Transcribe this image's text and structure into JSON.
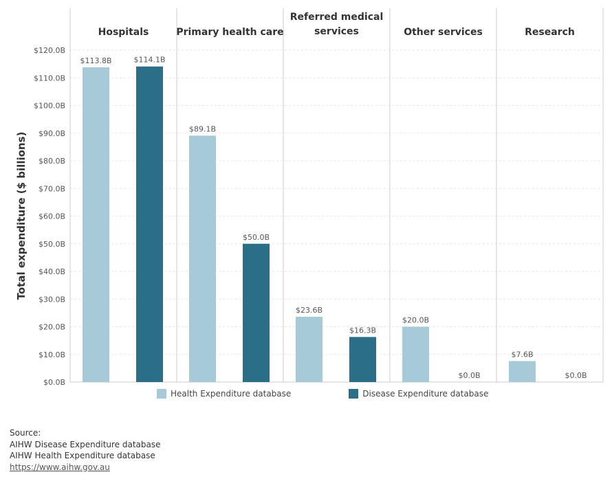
{
  "chart_data": {
    "type": "bar",
    "ylabel": "Total expenditure ($ billions)",
    "ylim": [
      0,
      120
    ],
    "yticks": [
      0,
      10,
      20,
      30,
      40,
      50,
      60,
      70,
      80,
      90,
      100,
      110,
      120
    ],
    "y_tick_labels": [
      "$0.0B",
      "$10.0B",
      "$20.0B",
      "$30.0B",
      "$40.0B",
      "$50.0B",
      "$60.0B",
      "$70.0B",
      "$80.0B",
      "$90.0B",
      "$100.0B",
      "$110.0B",
      "$120.0B"
    ],
    "categories": [
      "Hospitals",
      "Primary health care",
      "Referred medical services",
      "Other services",
      "Research"
    ],
    "category_labels": [
      [
        "Hospitals"
      ],
      [
        "Primary health care"
      ],
      [
        "Referred medical",
        "services"
      ],
      [
        "Other services"
      ],
      [
        "Research"
      ]
    ],
    "series": [
      {
        "name": "Health Expenditure database",
        "color": "#a6cad8",
        "values": [
          113.8,
          89.1,
          23.6,
          20.0,
          7.6
        ],
        "labels": [
          "$113.8B",
          "$89.1B",
          "$23.6B",
          "$20.0B",
          "$7.6B"
        ]
      },
      {
        "name": "Disease Expenditure database",
        "color": "#2a6f87",
        "values": [
          114.1,
          50.0,
          16.3,
          0.0,
          0.0
        ],
        "labels": [
          "$114.1B",
          "$50.0B",
          "$16.3B",
          "$0.0B",
          "$0.0B"
        ]
      }
    ],
    "grid": true,
    "legend_position": "bottom"
  },
  "source": {
    "heading": "Source:",
    "lines": [
      "AIHW Disease Expenditure database",
      "AIHW Health Expenditure database"
    ],
    "link": "https://www.aihw.gov.au"
  }
}
